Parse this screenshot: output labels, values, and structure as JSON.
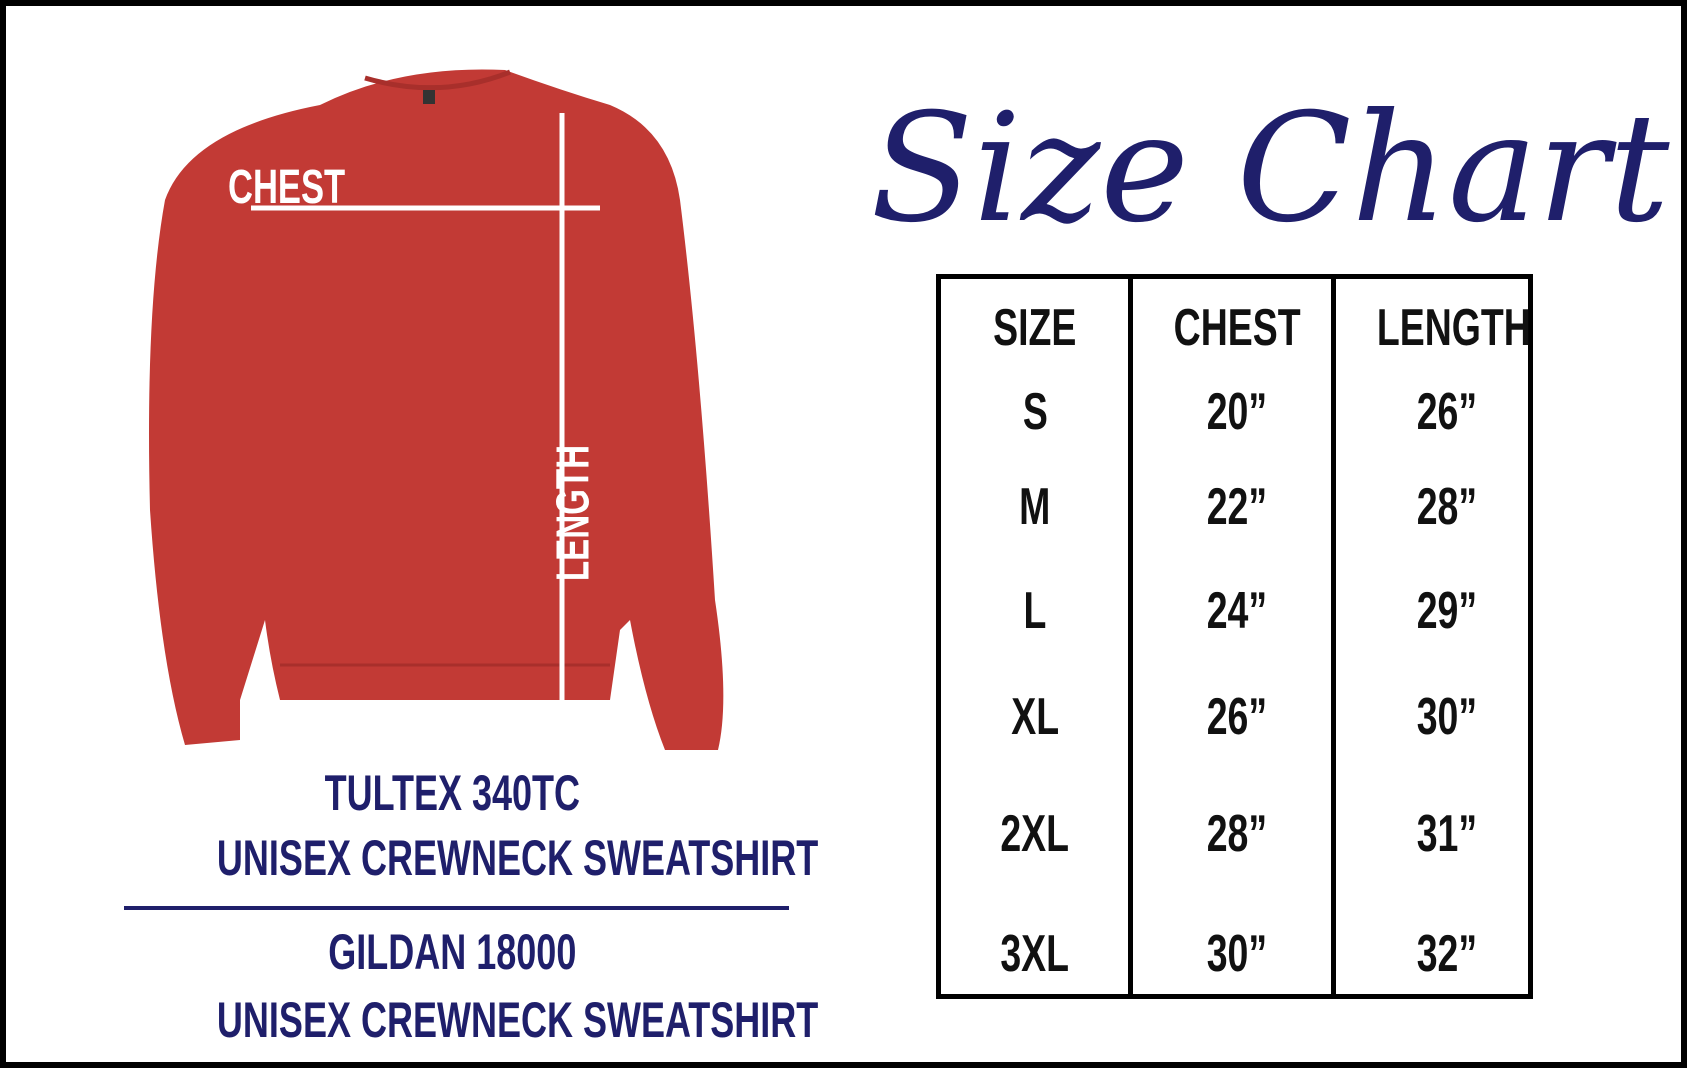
{
  "title": "Size Chart",
  "garment_labels": {
    "chest": "CHEST",
    "length": "LENGTH"
  },
  "products": [
    {
      "model": "TULTEX 340TC",
      "description": "UNISEX CREWNECK SWEATSHIRT"
    },
    {
      "model": "GILDAN 18000",
      "description": "UNISEX CREWNECK SWEATSHIRT"
    }
  ],
  "table": {
    "headers": [
      "SIZE",
      "CHEST",
      "LENGTH"
    ],
    "rows": [
      [
        "S",
        "20”",
        "26”"
      ],
      [
        "M",
        "22”",
        "28”"
      ],
      [
        "L",
        "24”",
        "29”"
      ],
      [
        "XL",
        "26”",
        "30”"
      ],
      [
        "2XL",
        "28”",
        "31”"
      ],
      [
        "3XL",
        "30”",
        "32”"
      ]
    ]
  },
  "colors": {
    "navy": "#1f1f6b",
    "shirt_red": "#c23a35",
    "border": "#000000"
  }
}
